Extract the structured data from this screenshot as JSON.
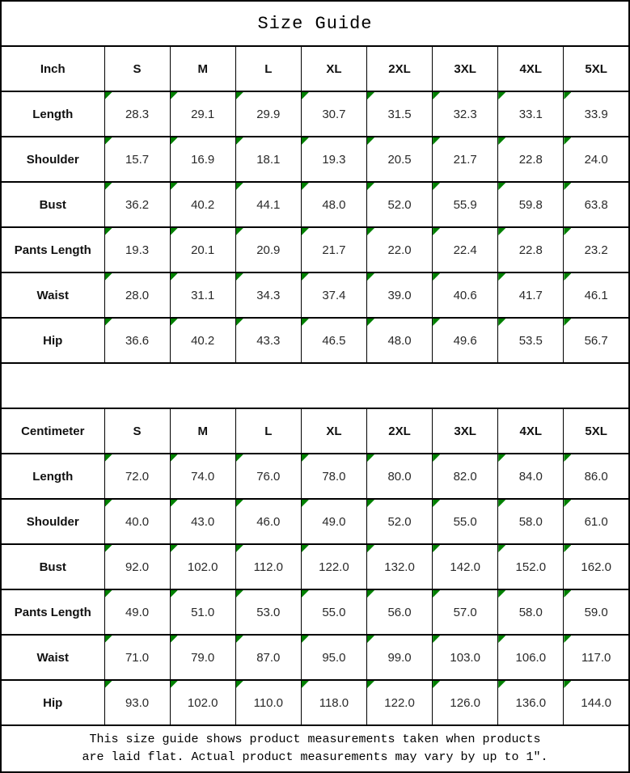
{
  "title": "Size Guide",
  "colors": {
    "marker_green": "#008000",
    "border_black": "#000000"
  },
  "cell_marker": {
    "icon": "green-corner-triangle"
  },
  "tables": [
    {
      "unit_header": "Inch",
      "sizes": [
        "S",
        "M",
        "L",
        "XL",
        "2XL",
        "3XL",
        "4XL",
        "5XL"
      ],
      "rows": [
        {
          "label": "Length",
          "values": [
            "28.3",
            "29.1",
            "29.9",
            "30.7",
            "31.5",
            "32.3",
            "33.1",
            "33.9"
          ]
        },
        {
          "label": "Shoulder",
          "values": [
            "15.7",
            "16.9",
            "18.1",
            "19.3",
            "20.5",
            "21.7",
            "22.8",
            "24.0"
          ]
        },
        {
          "label": "Bust",
          "values": [
            "36.2",
            "40.2",
            "44.1",
            "48.0",
            "52.0",
            "55.9",
            "59.8",
            "63.8"
          ]
        },
        {
          "label": "Pants Length",
          "values": [
            "19.3",
            "20.1",
            "20.9",
            "21.7",
            "22.0",
            "22.4",
            "22.8",
            "23.2"
          ]
        },
        {
          "label": "Waist",
          "values": [
            "28.0",
            "31.1",
            "34.3",
            "37.4",
            "39.0",
            "40.6",
            "41.7",
            "46.1"
          ]
        },
        {
          "label": "Hip",
          "values": [
            "36.6",
            "40.2",
            "43.3",
            "46.5",
            "48.0",
            "49.6",
            "53.5",
            "56.7"
          ]
        }
      ]
    },
    {
      "unit_header": "Centimeter",
      "sizes": [
        "S",
        "M",
        "L",
        "XL",
        "2XL",
        "3XL",
        "4XL",
        "5XL"
      ],
      "rows": [
        {
          "label": "Length",
          "values": [
            "72.0",
            "74.0",
            "76.0",
            "78.0",
            "80.0",
            "82.0",
            "84.0",
            "86.0"
          ]
        },
        {
          "label": "Shoulder",
          "values": [
            "40.0",
            "43.0",
            "46.0",
            "49.0",
            "52.0",
            "55.0",
            "58.0",
            "61.0"
          ]
        },
        {
          "label": "Bust",
          "values": [
            "92.0",
            "102.0",
            "112.0",
            "122.0",
            "132.0",
            "142.0",
            "152.0",
            "162.0"
          ]
        },
        {
          "label": "Pants Length",
          "values": [
            "49.0",
            "51.0",
            "53.0",
            "55.0",
            "56.0",
            "57.0",
            "58.0",
            "59.0"
          ]
        },
        {
          "label": "Waist",
          "values": [
            "71.0",
            "79.0",
            "87.0",
            "95.0",
            "99.0",
            "103.0",
            "106.0",
            "117.0"
          ]
        },
        {
          "label": "Hip",
          "values": [
            "93.0",
            "102.0",
            "110.0",
            "118.0",
            "122.0",
            "126.0",
            "136.0",
            "144.0"
          ]
        }
      ]
    }
  ],
  "footer": {
    "line1": "This size guide shows product measurements taken when products",
    "line2": "are laid flat. Actual product measurements may vary by up to 1″."
  }
}
